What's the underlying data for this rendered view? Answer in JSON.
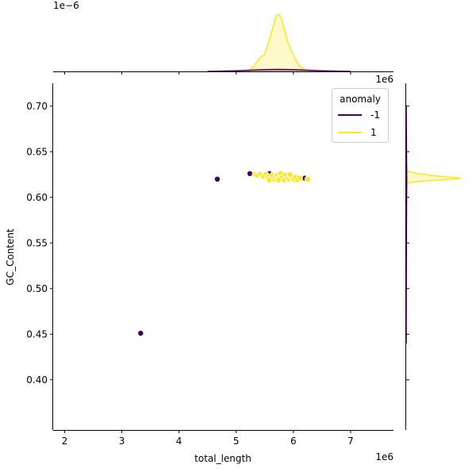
{
  "chart_data": {
    "type": "scatter",
    "title": "",
    "xlabel": "total_length",
    "ylabel": "GC_Content",
    "x_offset_label": "1e6",
    "top_margin_offset_label": "1e−6",
    "right_margin_offset_label": "1e6",
    "xlim": [
      1.8,
      7.75
    ],
    "ylim": [
      0.345,
      0.725
    ],
    "x_ticks": [
      2,
      3,
      4,
      5,
      6,
      7
    ],
    "y_ticks": [
      0.4,
      0.45,
      0.5,
      0.55,
      0.6,
      0.65,
      0.7
    ],
    "y_tick_labels": [
      "0.40",
      "0.45",
      "0.50",
      "0.55",
      "0.60",
      "0.65",
      "0.70"
    ],
    "grid": false,
    "legend": {
      "title": "anomaly",
      "placement": "top-right"
    },
    "series": [
      {
        "name": "-1",
        "color": "#440154",
        "points": [
          [
            3.33,
            0.451
          ],
          [
            4.67,
            0.62
          ],
          [
            5.24,
            0.626
          ],
          [
            5.58,
            0.626
          ],
          [
            5.7,
            0.622
          ],
          [
            6.2,
            0.621
          ]
        ]
      },
      {
        "name": "1",
        "color": "#fde725",
        "points": [
          [
            5.33,
            0.625
          ],
          [
            5.37,
            0.624
          ],
          [
            5.42,
            0.625
          ],
          [
            5.47,
            0.623
          ],
          [
            5.52,
            0.625
          ],
          [
            5.55,
            0.622
          ],
          [
            5.6,
            0.621
          ],
          [
            5.63,
            0.624
          ],
          [
            5.66,
            0.62
          ],
          [
            5.69,
            0.623
          ],
          [
            5.72,
            0.624
          ],
          [
            5.75,
            0.621
          ],
          [
            5.78,
            0.626
          ],
          [
            5.81,
            0.622
          ],
          [
            5.84,
            0.619
          ],
          [
            5.86,
            0.624
          ],
          [
            5.89,
            0.621
          ],
          [
            5.92,
            0.62
          ],
          [
            5.95,
            0.623
          ],
          [
            5.98,
            0.621
          ],
          [
            6.01,
            0.62
          ],
          [
            6.04,
            0.622
          ],
          [
            6.07,
            0.619
          ],
          [
            6.11,
            0.621
          ],
          [
            6.25,
            0.62
          ],
          [
            5.58,
            0.619
          ],
          [
            5.74,
            0.619
          ],
          [
            5.94,
            0.625
          ]
        ]
      }
    ],
    "marginal_x": {
      "series": [
        {
          "name": "1",
          "x": [
            5.2,
            5.3,
            5.4,
            5.5,
            5.6,
            5.7,
            5.75,
            5.8,
            5.9,
            6.0,
            6.1,
            6.2,
            6.3
          ],
          "density": [
            0.0,
            0.08,
            0.22,
            0.3,
            0.62,
            0.98,
            1.0,
            0.9,
            0.52,
            0.28,
            0.1,
            0.03,
            0.0
          ]
        },
        {
          "name": "-1",
          "x": [
            4.5,
            5.0,
            5.5,
            5.75,
            6.0,
            6.5,
            7.0
          ],
          "density": [
            0.0,
            0.01,
            0.03,
            0.035,
            0.03,
            0.01,
            0.0
          ]
        }
      ]
    },
    "marginal_y": {
      "series": [
        {
          "name": "1",
          "y": [
            0.613,
            0.616,
            0.618,
            0.62,
            0.621,
            0.622,
            0.624,
            0.626,
            0.628,
            0.63
          ],
          "density": [
            0.0,
            0.05,
            0.3,
            0.85,
            1.0,
            0.8,
            0.45,
            0.2,
            0.05,
            0.0
          ]
        },
        {
          "name": "-1",
          "y": [
            0.44,
            0.5,
            0.58,
            0.62,
            0.66,
            0.7
          ],
          "density": [
            0.0,
            0.002,
            0.006,
            0.01,
            0.004,
            0.0
          ]
        }
      ]
    }
  }
}
